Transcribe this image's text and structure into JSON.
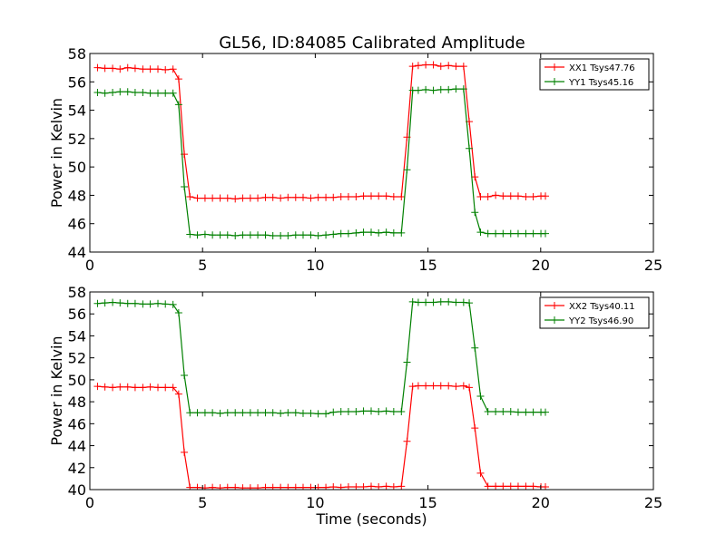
{
  "figure": {
    "title": "GL56, ID:84085 Calibrated Amplitude"
  },
  "chart_data": [
    {
      "type": "line",
      "title": "GL56, ID:84085 Calibrated Amplitude",
      "xlabel": "",
      "ylabel": "Power in Kelvin",
      "xlim": [
        0,
        25
      ],
      "ylim": [
        44,
        58
      ],
      "xticks": [
        0,
        5,
        10,
        15,
        20,
        25
      ],
      "yticks": [
        44,
        46,
        48,
        50,
        52,
        54,
        56,
        58
      ],
      "grid": false,
      "legend": "top-right",
      "x": [
        0.34,
        0.67,
        1.01,
        1.34,
        1.68,
        2.01,
        2.35,
        2.68,
        3.02,
        3.35,
        3.69,
        3.94,
        4.19,
        4.44,
        4.77,
        5.11,
        5.44,
        5.78,
        6.11,
        6.45,
        6.78,
        7.12,
        7.45,
        7.79,
        8.12,
        8.46,
        8.79,
        9.13,
        9.46,
        9.8,
        10.13,
        10.47,
        10.8,
        11.14,
        11.47,
        11.81,
        12.14,
        12.48,
        12.81,
        13.15,
        13.48,
        13.82,
        14.07,
        14.32,
        14.57,
        14.9,
        15.24,
        15.57,
        15.91,
        16.24,
        16.58,
        16.83,
        17.08,
        17.33,
        17.66,
        18.0,
        18.33,
        18.67,
        19.0,
        19.34,
        19.67,
        20.01,
        20.21
      ],
      "series": [
        {
          "name": "XX1 Tsys47.76",
          "color": "#ff0000",
          "values": [
            57.0,
            56.95,
            56.95,
            56.9,
            57.0,
            56.95,
            56.9,
            56.9,
            56.9,
            56.85,
            56.9,
            56.2,
            50.9,
            47.9,
            47.8,
            47.8,
            47.8,
            47.8,
            47.8,
            47.75,
            47.8,
            47.8,
            47.8,
            47.85,
            47.85,
            47.8,
            47.85,
            47.85,
            47.85,
            47.8,
            47.85,
            47.85,
            47.85,
            47.9,
            47.9,
            47.9,
            47.95,
            47.95,
            47.95,
            47.95,
            47.9,
            47.9,
            52.1,
            57.1,
            57.15,
            57.2,
            57.2,
            57.1,
            57.15,
            57.1,
            57.1,
            53.2,
            49.3,
            47.9,
            47.9,
            48.0,
            47.95,
            47.95,
            47.95,
            47.9,
            47.9,
            47.95,
            47.95
          ]
        },
        {
          "name": "YY1 Tsys45.16",
          "color": "#008000",
          "values": [
            55.25,
            55.2,
            55.25,
            55.3,
            55.3,
            55.25,
            55.25,
            55.2,
            55.2,
            55.2,
            55.2,
            54.4,
            48.6,
            45.25,
            45.2,
            45.25,
            45.2,
            45.2,
            45.2,
            45.15,
            45.2,
            45.2,
            45.2,
            45.2,
            45.15,
            45.15,
            45.15,
            45.2,
            45.2,
            45.2,
            45.15,
            45.2,
            45.25,
            45.3,
            45.3,
            45.35,
            45.4,
            45.4,
            45.35,
            45.4,
            45.35,
            45.35,
            49.8,
            55.4,
            55.4,
            55.45,
            55.4,
            55.45,
            55.45,
            55.5,
            55.5,
            51.3,
            46.8,
            45.4,
            45.3,
            45.3,
            45.3,
            45.3,
            45.3,
            45.3,
            45.3,
            45.3,
            45.3
          ]
        }
      ]
    },
    {
      "type": "line",
      "title": "",
      "xlabel": "Time (seconds)",
      "ylabel": "Power in Kelvin",
      "xlim": [
        0,
        25
      ],
      "ylim": [
        40,
        58
      ],
      "xticks": [
        0,
        5,
        10,
        15,
        20,
        25
      ],
      "yticks": [
        40,
        42,
        44,
        46,
        48,
        50,
        52,
        54,
        56,
        58
      ],
      "grid": false,
      "legend": "top-right",
      "x": [
        0.34,
        0.67,
        1.01,
        1.34,
        1.68,
        2.01,
        2.35,
        2.68,
        3.02,
        3.35,
        3.69,
        3.94,
        4.19,
        4.44,
        4.77,
        5.11,
        5.44,
        5.78,
        6.11,
        6.45,
        6.78,
        7.12,
        7.45,
        7.79,
        8.12,
        8.46,
        8.79,
        9.13,
        9.46,
        9.8,
        10.13,
        10.47,
        10.8,
        11.14,
        11.47,
        11.81,
        12.14,
        12.48,
        12.81,
        13.15,
        13.48,
        13.82,
        14.07,
        14.32,
        14.57,
        14.9,
        15.24,
        15.57,
        15.91,
        16.24,
        16.58,
        16.83,
        17.08,
        17.33,
        17.66,
        18.0,
        18.33,
        18.67,
        19.0,
        19.34,
        19.67,
        20.01,
        20.21
      ],
      "series": [
        {
          "name": "XX2 Tsys40.11",
          "color": "#ff0000",
          "values": [
            49.4,
            49.35,
            49.3,
            49.35,
            49.35,
            49.3,
            49.3,
            49.35,
            49.3,
            49.3,
            49.3,
            48.7,
            43.4,
            40.2,
            40.2,
            40.15,
            40.2,
            40.15,
            40.2,
            40.2,
            40.15,
            40.15,
            40.15,
            40.2,
            40.2,
            40.2,
            40.2,
            40.2,
            40.2,
            40.2,
            40.2,
            40.2,
            40.25,
            40.2,
            40.25,
            40.25,
            40.25,
            40.3,
            40.25,
            40.3,
            40.25,
            40.3,
            44.4,
            49.4,
            49.45,
            49.45,
            49.45,
            49.45,
            49.45,
            49.4,
            49.45,
            49.3,
            45.6,
            41.5,
            40.3,
            40.3,
            40.3,
            40.3,
            40.3,
            40.3,
            40.3,
            40.25,
            40.25
          ]
        },
        {
          "name": "YY2 Tsys46.90",
          "color": "#008000",
          "values": [
            56.95,
            57.0,
            57.05,
            57.0,
            56.95,
            56.95,
            56.9,
            56.9,
            56.95,
            56.9,
            56.85,
            56.1,
            50.4,
            47.0,
            47.0,
            47.0,
            47.0,
            46.95,
            47.0,
            47.0,
            47.0,
            47.0,
            47.0,
            47.0,
            47.0,
            46.95,
            47.0,
            47.0,
            46.95,
            46.95,
            46.9,
            46.9,
            47.05,
            47.1,
            47.1,
            47.1,
            47.15,
            47.15,
            47.1,
            47.15,
            47.1,
            47.1,
            51.6,
            57.1,
            57.05,
            57.05,
            57.05,
            57.1,
            57.1,
            57.05,
            57.05,
            57.0,
            52.9,
            48.5,
            47.1,
            47.1,
            47.1,
            47.1,
            47.05,
            47.05,
            47.05,
            47.05,
            47.05
          ]
        }
      ]
    }
  ]
}
